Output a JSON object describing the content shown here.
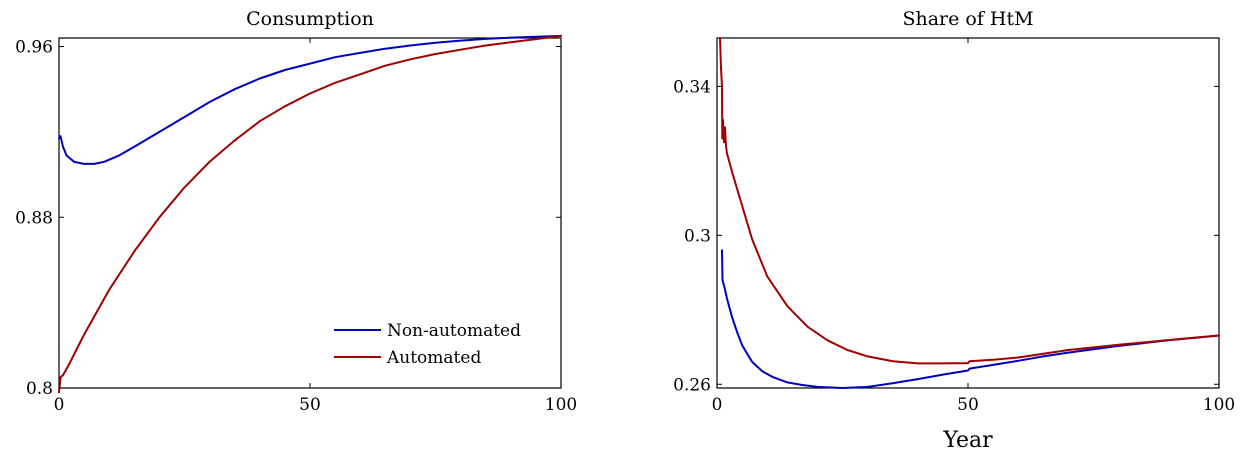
{
  "chart_data": [
    {
      "type": "line",
      "title": "Consumption",
      "xlabel": "",
      "ylabel": "",
      "xlim": [
        0,
        100
      ],
      "ylim": [
        0.8,
        0.964
      ],
      "xticks": [
        0,
        50,
        100
      ],
      "yticks": [
        0.8,
        0.88,
        0.96
      ],
      "xtick_labels": [
        "0",
        "50",
        "100"
      ],
      "ytick_labels": [
        "0.8",
        "0.88",
        "0.96"
      ],
      "grid": false,
      "legend_position": "bottom-right",
      "series": [
        {
          "name": "Non-automated",
          "color": "#0000c0",
          "x": [
            0,
            0.3,
            0.8,
            1.5,
            3,
            5,
            7,
            9,
            12,
            15,
            20,
            25,
            30,
            35,
            40,
            45,
            50,
            55,
            60,
            65,
            70,
            75,
            80,
            85,
            90,
            95,
            100
          ],
          "y": [
            0.917,
            0.918,
            0.913,
            0.909,
            0.906,
            0.905,
            0.905,
            0.906,
            0.909,
            0.913,
            0.92,
            0.927,
            0.934,
            0.94,
            0.945,
            0.949,
            0.952,
            0.955,
            0.957,
            0.959,
            0.9605,
            0.9618,
            0.9628,
            0.9636,
            0.9642,
            0.9646,
            0.965
          ]
        },
        {
          "name": "Automated",
          "color": "#a00000",
          "x": [
            0,
            0.3,
            0.8,
            2,
            5,
            10,
            15,
            20,
            25,
            30,
            35,
            40,
            45,
            50,
            55,
            60,
            65,
            70,
            75,
            80,
            85,
            90,
            95,
            100
          ],
          "y": [
            0.798,
            0.805,
            0.806,
            0.811,
            0.825,
            0.846,
            0.864,
            0.88,
            0.894,
            0.906,
            0.916,
            0.925,
            0.932,
            0.938,
            0.943,
            0.947,
            0.951,
            0.954,
            0.9565,
            0.9585,
            0.9605,
            0.962,
            0.9635,
            0.965
          ]
        }
      ]
    },
    {
      "type": "line",
      "title": "Share of HtM",
      "xlabel": "Year",
      "ylabel": "",
      "xlim": [
        0,
        100
      ],
      "ylim": [
        0.259,
        0.353
      ],
      "xticks": [
        0,
        50,
        100
      ],
      "yticks": [
        0.26,
        0.3,
        0.34
      ],
      "xtick_labels": [
        "0",
        "50",
        "100"
      ],
      "ytick_labels": [
        "0.26",
        "0.3",
        "0.34"
      ],
      "grid": false,
      "series": [
        {
          "name": "",
          "color": "#0000c0",
          "x": [
            1,
            1.1,
            1.5,
            2,
            3,
            4,
            5,
            7,
            9,
            11,
            14,
            17,
            20,
            25,
            30,
            35,
            40,
            45,
            50,
            50.3,
            55,
            60,
            65,
            70,
            80,
            90,
            100
          ],
          "y": [
            0.296,
            0.288,
            0.286,
            0.283,
            0.278,
            0.274,
            0.2705,
            0.266,
            0.2635,
            0.262,
            0.2605,
            0.2598,
            0.2593,
            0.259,
            0.2593,
            0.2603,
            0.2614,
            0.2626,
            0.2637,
            0.2642,
            0.2652,
            0.2663,
            0.2675,
            0.2685,
            0.2703,
            0.2718,
            0.2731
          ]
        },
        {
          "name": "",
          "color": "#a00000",
          "x": [
            0.6,
            0.8,
            1,
            1.05,
            1.2,
            1.4,
            1.6,
            1.8,
            2,
            3,
            5,
            7,
            10,
            14,
            18,
            22,
            26,
            30,
            35,
            40,
            45,
            50,
            50.3,
            55,
            60,
            65,
            70,
            80,
            90,
            100
          ],
          "y": [
            0.353,
            0.345,
            0.34,
            0.326,
            0.331,
            0.325,
            0.329,
            0.324,
            0.322,
            0.317,
            0.308,
            0.299,
            0.289,
            0.281,
            0.2755,
            0.2718,
            0.2692,
            0.2675,
            0.2662,
            0.2656,
            0.2656,
            0.2657,
            0.2662,
            0.2666,
            0.2672,
            0.2682,
            0.2692,
            0.2706,
            0.2719,
            0.2731
          ]
        }
      ]
    }
  ]
}
